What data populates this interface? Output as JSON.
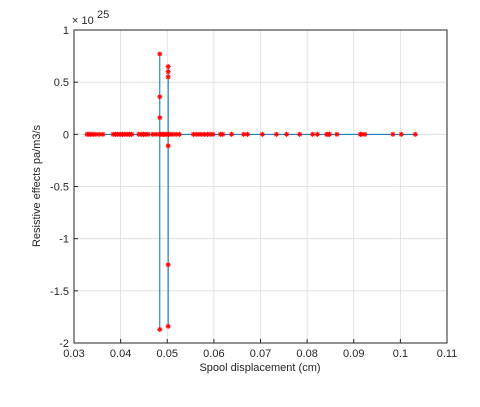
{
  "chart_data": {
    "type": "line",
    "title": "",
    "xlabel": "Spool displacement (cm)",
    "ylabel": "Resistive effects pa/m3/s",
    "xlim": [
      0.03,
      0.11
    ],
    "ylim": [
      -2,
      1
    ],
    "y_scale_exponent_label": "× 10",
    "y_scale_exponent": "25",
    "x_ticks": [
      "0.03",
      "0.04",
      "0.05",
      "0.06",
      "0.07",
      "0.08",
      "0.09",
      "0.1",
      "0.11"
    ],
    "y_ticks": [
      "1",
      "0.5",
      "0",
      "-0.5",
      "-1",
      "-1.5",
      "-2"
    ],
    "x_tick_values": [
      0.03,
      0.04,
      0.05,
      0.06,
      0.07,
      0.08,
      0.09,
      0.1,
      0.11
    ],
    "y_tick_values": [
      1,
      0.5,
      0,
      -0.5,
      -1,
      -1.5,
      -2
    ],
    "grid": true,
    "line_color": "#0072bd",
    "marker_color": "#ff0000",
    "series": [
      {
        "marker": "*",
        "points": [
          [
            0.0328,
            0
          ],
          [
            0.0332,
            0
          ],
          [
            0.0336,
            0
          ],
          [
            0.0341,
            0
          ],
          [
            0.0347,
            0
          ],
          [
            0.0354,
            0
          ],
          [
            0.0362,
            0
          ],
          [
            0.0384,
            0
          ],
          [
            0.0389,
            0
          ],
          [
            0.0394,
            0
          ],
          [
            0.0399,
            0
          ],
          [
            0.0404,
            0
          ],
          [
            0.0409,
            0
          ],
          [
            0.0414,
            0
          ],
          [
            0.0419,
            0
          ],
          [
            0.0424,
            0
          ],
          [
            0.0439,
            0
          ],
          [
            0.0444,
            0
          ],
          [
            0.0449,
            0
          ],
          [
            0.0454,
            0
          ],
          [
            0.0459,
            0
          ],
          [
            0.0469,
            0
          ],
          [
            0.0476,
            0
          ],
          [
            0.0484,
            0
          ],
          [
            0.0484,
            0.77
          ],
          [
            0.0484,
            0.36
          ],
          [
            0.0484,
            0.16
          ],
          [
            0.0484,
            -1.87
          ],
          [
            0.0485,
            0
          ],
          [
            0.0489,
            0
          ],
          [
            0.0492,
            0
          ],
          [
            0.0495,
            0
          ],
          [
            0.0498,
            0
          ],
          [
            0.0502,
            0.65
          ],
          [
            0.0502,
            0.6
          ],
          [
            0.0502,
            0.55
          ],
          [
            0.0502,
            -0.11
          ],
          [
            0.0502,
            -1.25
          ],
          [
            0.0502,
            -1.84
          ],
          [
            0.0503,
            0
          ],
          [
            0.0506,
            0
          ],
          [
            0.0512,
            0
          ],
          [
            0.0519,
            0
          ],
          [
            0.0526,
            0
          ],
          [
            0.0556,
            0
          ],
          [
            0.0562,
            0
          ],
          [
            0.0568,
            0
          ],
          [
            0.0574,
            0
          ],
          [
            0.058,
            0
          ],
          [
            0.0586,
            0
          ],
          [
            0.0592,
            0
          ],
          [
            0.0598,
            0
          ],
          [
            0.0614,
            0
          ],
          [
            0.0619,
            0
          ],
          [
            0.0638,
            0
          ],
          [
            0.0664,
            0
          ],
          [
            0.0672,
            0
          ],
          [
            0.0704,
            0
          ],
          [
            0.0734,
            0
          ],
          [
            0.0756,
            0
          ],
          [
            0.0784,
            0
          ],
          [
            0.0812,
            0
          ],
          [
            0.0822,
            0
          ],
          [
            0.0842,
            0
          ],
          [
            0.0845,
            0
          ],
          [
            0.0848,
            0
          ],
          [
            0.0864,
            0
          ],
          [
            0.0914,
            0
          ],
          [
            0.0917,
            0
          ],
          [
            0.0924,
            0
          ],
          [
            0.0984,
            0
          ],
          [
            0.1002,
            0
          ],
          [
            0.1032,
            0
          ]
        ]
      }
    ],
    "line_path": [
      [
        0.0328,
        0
      ],
      [
        0.0484,
        0
      ],
      [
        0.0484,
        0.77
      ],
      [
        0.0484,
        -1.87
      ],
      [
        0.0484,
        0
      ],
      [
        0.0502,
        0
      ],
      [
        0.0502,
        0.65
      ],
      [
        0.0502,
        -1.84
      ],
      [
        0.0502,
        0
      ],
      [
        0.1032,
        0
      ]
    ]
  }
}
